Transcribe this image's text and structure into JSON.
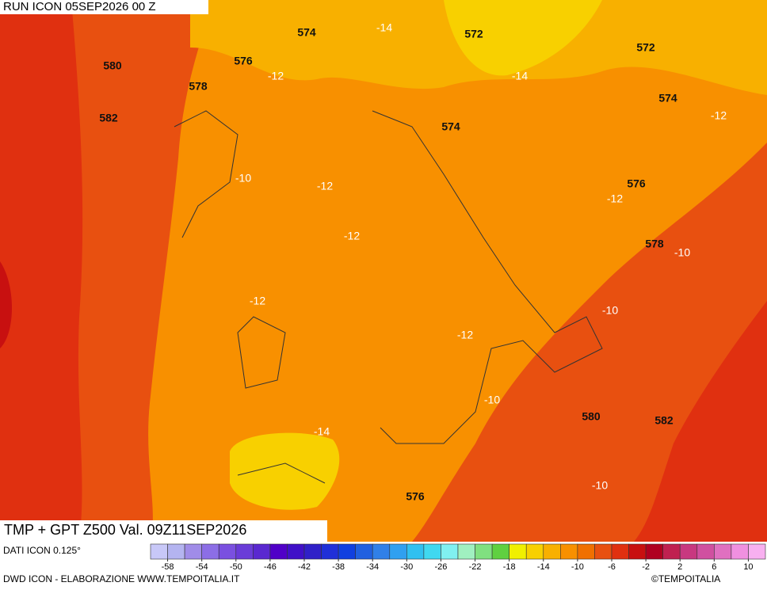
{
  "header": {
    "run": "RUN ICON 05SEP2026 00 Z",
    "title": "TMP + GPT Z500 Val. 09Z11SEP2026"
  },
  "map": {
    "geopotential_labels": [
      574,
      572,
      572,
      580,
      576,
      578,
      574,
      582,
      574,
      576,
      578,
      580,
      582,
      576
    ],
    "temperature_labels": [
      -14,
      -12,
      -14,
      -12,
      -10,
      -12,
      -12,
      -12,
      -10,
      -12,
      -10,
      -12,
      -10,
      -14,
      -10
    ]
  },
  "legend": {
    "source": "DATI ICON 0.125°",
    "colorbar": {
      "bounds": [
        -60,
        12
      ],
      "ticks": [
        -58,
        -54,
        -50,
        -46,
        -42,
        -38,
        -34,
        -30,
        -26,
        -22,
        -18,
        -14,
        -10,
        -6,
        -2,
        2,
        6,
        10
      ],
      "colors": [
        "#c8c8f8",
        "#b4b4f0",
        "#a08ce8",
        "#8c6ee6",
        "#7a50e0",
        "#6a3cd8",
        "#5a28d0",
        "#5000c8",
        "#4010c8",
        "#3020c8",
        "#2030d8",
        "#1040e0",
        "#2060e0",
        "#3080e8",
        "#30a0f0",
        "#30c0f0",
        "#40d8f0",
        "#80f0f0",
        "#a0f0c0",
        "#80e080",
        "#60d040",
        "#f0f000",
        "#f8d000",
        "#f8b000",
        "#f89000",
        "#f07000",
        "#e85010",
        "#e03010",
        "#c81010",
        "#b00020",
        "#c02050",
        "#c83880",
        "#d050a0",
        "#e070c0",
        "#f090e0",
        "#f8b0f0"
      ]
    }
  },
  "footer": {
    "credit": "DWD ICON - ELABORAZIONE WWW.TEMPOITALIA.IT",
    "copyright": "©TEMPOITALIA"
  }
}
